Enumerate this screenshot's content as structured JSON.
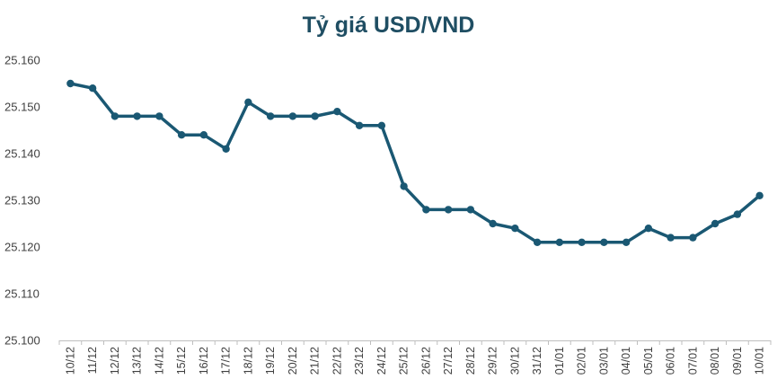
{
  "chart_data": {
    "type": "line",
    "title": "Tỷ giá USD/VND",
    "xlabel": "",
    "ylabel": "",
    "categories": [
      "10/12",
      "11/12",
      "12/12",
      "13/12",
      "14/12",
      "15/12",
      "16/12",
      "17/12",
      "18/12",
      "19/12",
      "20/12",
      "21/12",
      "22/12",
      "23/12",
      "24/12",
      "25/12",
      "26/12",
      "27/12",
      "28/12",
      "29/12",
      "30/12",
      "31/12",
      "01/01",
      "02/01",
      "03/01",
      "04/01",
      "05/01",
      "06/01",
      "07/01",
      "08/01",
      "09/01",
      "10/01"
    ],
    "series": [
      {
        "values": [
          25155,
          25154,
          25148,
          25148,
          25148,
          25144,
          25144,
          25141,
          25151,
          25148,
          25148,
          25148,
          25149,
          25146,
          25146,
          25133,
          25128,
          25128,
          25128,
          25125,
          25124,
          25121,
          25121,
          25121,
          25121,
          25121,
          25124,
          25122,
          25122,
          25125,
          25127,
          25131
        ],
        "color": "#1a5873"
      }
    ],
    "ylim": [
      25100,
      25160
    ],
    "y_ticks": [
      25100,
      25110,
      25120,
      25130,
      25140,
      25150,
      25160
    ],
    "y_tick_labels": [
      "25.100",
      "25.110",
      "25.120",
      "25.130",
      "25.140",
      "25.150",
      "25.160"
    ],
    "grid": false,
    "legend": "none",
    "colors": {
      "line": "#1a5873",
      "title": "#1f4e63",
      "axis": "#bfbfbf",
      "text": "#404040"
    }
  }
}
